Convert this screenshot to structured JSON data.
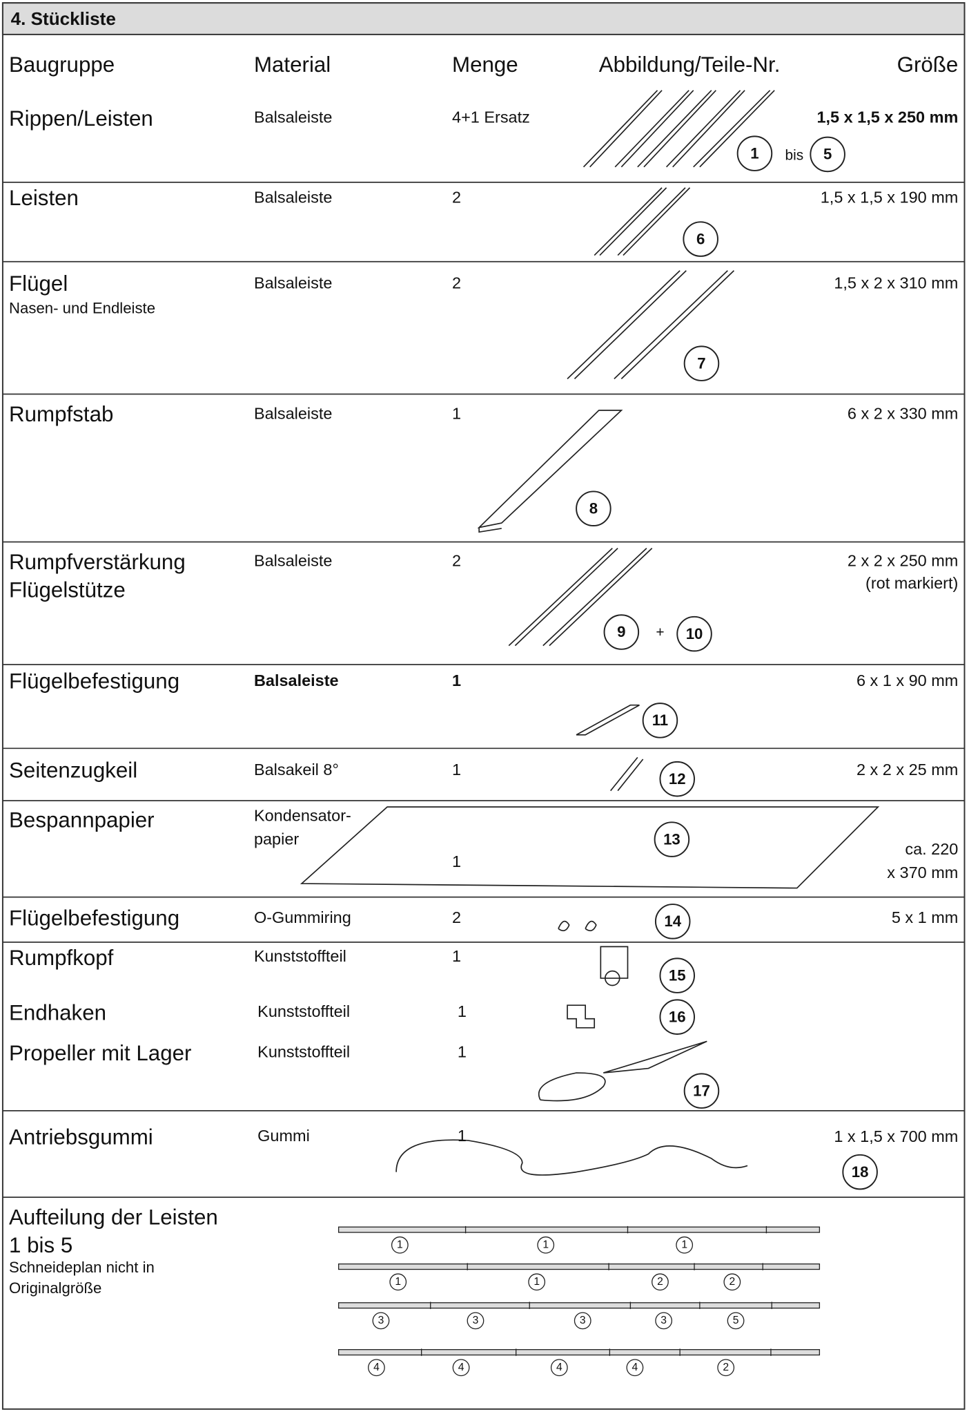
{
  "title": "4. Stückliste",
  "header": {
    "baugruppe": "Baugruppe",
    "material": "Material",
    "menge": "Menge",
    "abbildung": "Abbildung/Teile-Nr.",
    "groesse": "Größe"
  },
  "rows": [
    {
      "baugruppe": [
        "Rippen/Leisten"
      ],
      "material": [
        "Balsaleiste"
      ],
      "menge": "4+1 Ersatz",
      "teile": [
        "1",
        "bis",
        "5"
      ],
      "groesse": [
        "1,5 x 1,5 x 250 mm"
      ]
    },
    {
      "baugruppe": [
        "Leisten"
      ],
      "material": [
        "Balsaleiste"
      ],
      "menge": "2",
      "teile": [
        "6"
      ],
      "groesse": [
        "1,5 x 1,5 x 190 mm"
      ]
    },
    {
      "baugruppe": [
        "Flügel",
        "Nasen- und Endleiste"
      ],
      "material": [
        "Balsaleiste"
      ],
      "menge": "2",
      "teile": [
        "7"
      ],
      "groesse": [
        "1,5 x 2 x 310 mm"
      ]
    },
    {
      "baugruppe": [
        "Rumpfstab"
      ],
      "material": [
        "Balsaleiste"
      ],
      "menge": "1",
      "teile": [
        "8"
      ],
      "groesse": [
        "6 x 2 x 330 mm"
      ]
    },
    {
      "baugruppe": [
        "Rumpfverstärkung",
        "Flügelstütze"
      ],
      "material": [
        "Balsaleiste"
      ],
      "menge": "2",
      "teile": [
        "9",
        "+",
        "10"
      ],
      "groesse": [
        "2 x 2 x 250 mm",
        "(rot markiert)"
      ]
    },
    {
      "baugruppe": [
        "Flügelbefestigung"
      ],
      "material": [
        "Balsaleiste"
      ],
      "menge": "1",
      "teile": [
        "11"
      ],
      "groesse": [
        "6 x 1 x 90 mm"
      ]
    },
    {
      "baugruppe": [
        "Seitenzugkeil"
      ],
      "material": [
        "Balsakeil 8°"
      ],
      "menge": "1",
      "teile": [
        "12"
      ],
      "groesse": [
        "2 x 2 x 25 mm"
      ]
    },
    {
      "baugruppe": [
        "Bespannpapier"
      ],
      "material": [
        "Kondensator-",
        "papier"
      ],
      "menge": "1",
      "teile": [
        "13"
      ],
      "groesse": [
        "ca. 220",
        "x 370 mm"
      ]
    },
    {
      "baugruppe": [
        "Flügelbefestigung"
      ],
      "material": [
        "O-Gummiring"
      ],
      "menge": "2",
      "teile": [
        "14"
      ],
      "groesse": [
        "5 x 1 mm"
      ]
    },
    {
      "baugruppe": [
        "Rumpfkopf"
      ],
      "material": [
        "Kunststoffteil"
      ],
      "menge": "1",
      "teile": [
        "15"
      ]
    },
    {
      "baugruppe": [
        "Endhaken"
      ],
      "material": [
        "Kunststoffteil"
      ],
      "menge": "1",
      "teile": [
        "16"
      ]
    },
    {
      "baugruppe": [
        "Propeller mit Lager"
      ],
      "material": [
        "Kunststoffteil"
      ],
      "menge": "1",
      "teile": [
        "17"
      ]
    },
    {
      "baugruppe": [
        "Antriebsgummi"
      ],
      "material": [
        "Gummi"
      ],
      "menge": "1",
      "teile": [
        "18"
      ],
      "groesse": [
        "1 x 1,5 x 700 mm"
      ]
    }
  ],
  "cut_plan": {
    "label": [
      "Aufteilung der Leisten",
      "1 bis 5",
      "Schneideplan nicht in",
      "Originalgröße"
    ],
    "strips": [
      [
        "1",
        "1",
        "1"
      ],
      [
        "1",
        "1",
        "2",
        "2"
      ],
      [
        "3",
        "3",
        "3",
        "3",
        "5"
      ],
      [
        "4",
        "4",
        "4",
        "4",
        "2"
      ]
    ]
  }
}
